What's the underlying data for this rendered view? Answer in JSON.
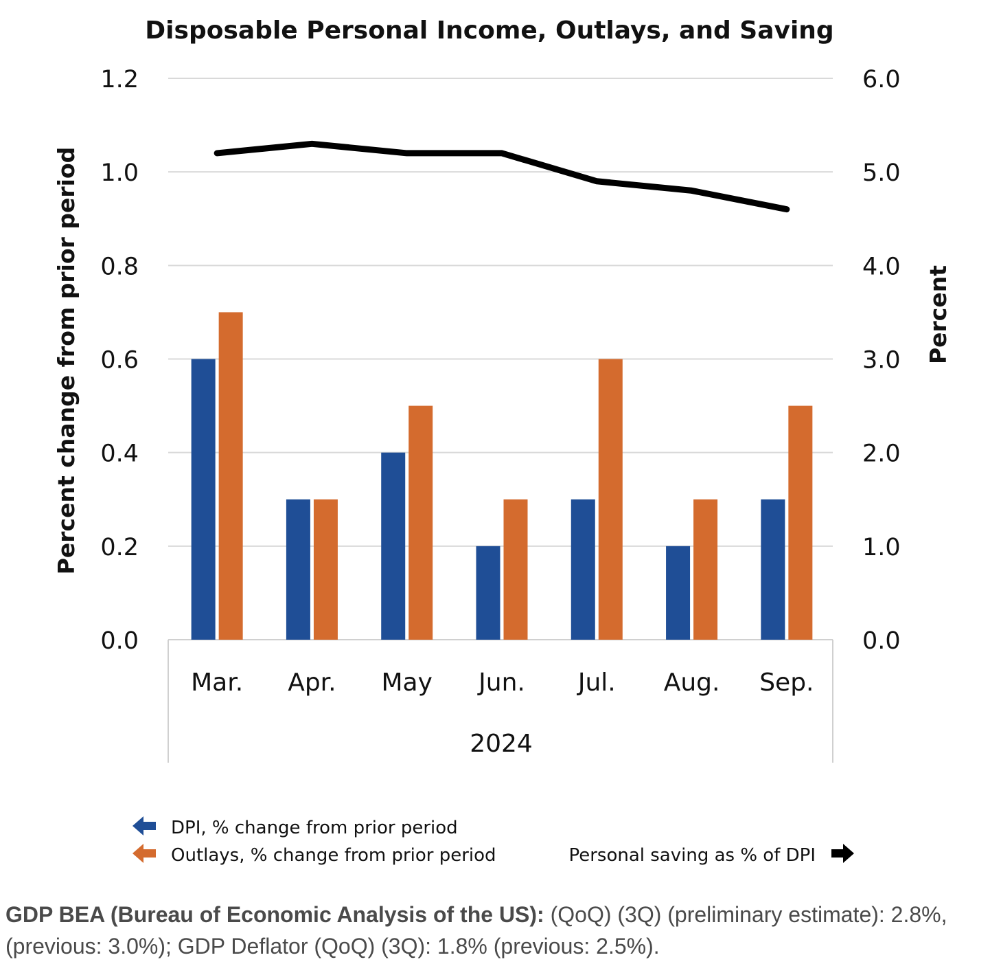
{
  "chart_data": {
    "type": "bar",
    "title": "Disposable Personal Income, Outlays, and Saving",
    "categories": [
      "Mar.",
      "Apr.",
      "May",
      "Jun.",
      "Jul.",
      "Aug.",
      "Sep."
    ],
    "category_group_label": "2024",
    "series": [
      {
        "name": "DPI, % change from prior period",
        "type": "bar",
        "axis": "left",
        "color": "#1f4e96",
        "values": [
          0.6,
          0.3,
          0.4,
          0.2,
          0.3,
          0.2,
          0.3
        ]
      },
      {
        "name": "Outlays, % change from prior period",
        "type": "bar",
        "axis": "left",
        "color": "#d46b2e",
        "values": [
          0.7,
          0.3,
          0.5,
          0.3,
          0.6,
          0.3,
          0.5
        ]
      },
      {
        "name": "Personal saving as % of DPI",
        "type": "line",
        "axis": "right",
        "color": "#000000",
        "values": [
          5.2,
          5.3,
          5.2,
          5.2,
          4.9,
          4.8,
          4.6
        ]
      }
    ],
    "ylabel": "Percent change from prior period",
    "ylim": [
      0,
      1.2
    ],
    "yticks": [
      "0.0",
      "0.2",
      "0.4",
      "0.6",
      "0.8",
      "1.0",
      "1.2"
    ],
    "y2label": "Percent",
    "y2lim": [
      0,
      6.0
    ],
    "y2ticks": [
      "0.0",
      "1.0",
      "2.0",
      "3.0",
      "4.0",
      "5.0",
      "6.0"
    ],
    "grid": true,
    "legend_position": "bottom"
  },
  "caption": {
    "bold": "GDP BEA (Bureau of Economic Analysis of the US):",
    "text": " (QoQ) (3Q) (preliminary estimate): 2.8%, (previous: 3.0%); GDP Deflator (QoQ) (3Q): 1.8% (previous: 2.5%)."
  }
}
